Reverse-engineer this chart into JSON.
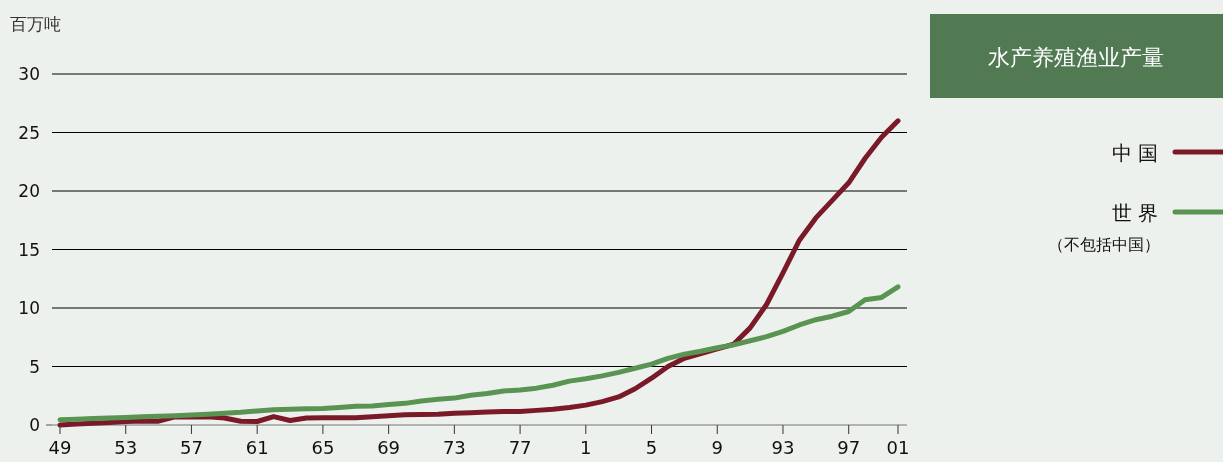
{
  "chart_data": {
    "type": "line",
    "title": "水产养殖渔业产量",
    "ylabel": "百万吨",
    "categories": [
      "49",
      null,
      null,
      null,
      "53",
      null,
      null,
      null,
      "57",
      null,
      null,
      null,
      "61",
      null,
      null,
      null,
      "65",
      null,
      null,
      null,
      "69",
      null,
      null,
      null,
      "73",
      null,
      null,
      null,
      "77",
      null,
      null,
      null,
      "1",
      null,
      null,
      null,
      "5",
      null,
      null,
      null,
      "9",
      null,
      null,
      null,
      "93",
      null,
      null,
      null,
      "97",
      null,
      null,
      "01"
    ],
    "series": [
      {
        "name": "中 国",
        "color": "#7a1a28",
        "values": [
          0.0,
          0.08,
          0.15,
          0.22,
          0.3,
          0.35,
          0.33,
          0.7,
          0.68,
          0.7,
          0.6,
          0.32,
          0.3,
          0.72,
          0.38,
          0.6,
          0.62,
          0.62,
          0.62,
          0.7,
          0.8,
          0.88,
          0.9,
          0.92,
          1.0,
          1.05,
          1.12,
          1.15,
          1.15,
          1.25,
          1.35,
          1.5,
          1.7,
          2.0,
          2.4,
          3.1,
          4.0,
          5.0,
          5.7,
          6.1,
          6.5,
          6.9,
          8.3,
          10.3,
          13.0,
          15.8,
          17.7,
          19.2,
          20.7,
          22.8,
          24.6,
          26.0
        ]
      },
      {
        "name": "世 界",
        "color": "#5a9452",
        "values": [
          0.45,
          0.5,
          0.55,
          0.6,
          0.65,
          0.7,
          0.75,
          0.8,
          0.85,
          0.92,
          1.0,
          1.08,
          1.2,
          1.3,
          1.35,
          1.38,
          1.42,
          1.5,
          1.6,
          1.62,
          1.75,
          1.85,
          2.05,
          2.2,
          2.3,
          2.55,
          2.7,
          2.9,
          3.0,
          3.15,
          3.4,
          3.75,
          3.95,
          4.2,
          4.5,
          4.85,
          5.2,
          5.7,
          6.05,
          6.3,
          6.6,
          6.85,
          7.2,
          7.55,
          8.0,
          8.55,
          9.0,
          9.3,
          9.7,
          10.7,
          10.9,
          11.8
        ]
      }
    ],
    "ylim": [
      0,
      30
    ],
    "yticks": [
      0,
      5,
      10,
      15,
      20,
      25,
      30
    ],
    "grid": "y",
    "legend": "right",
    "annotations": [
      "（不包括中国）"
    ]
  }
}
